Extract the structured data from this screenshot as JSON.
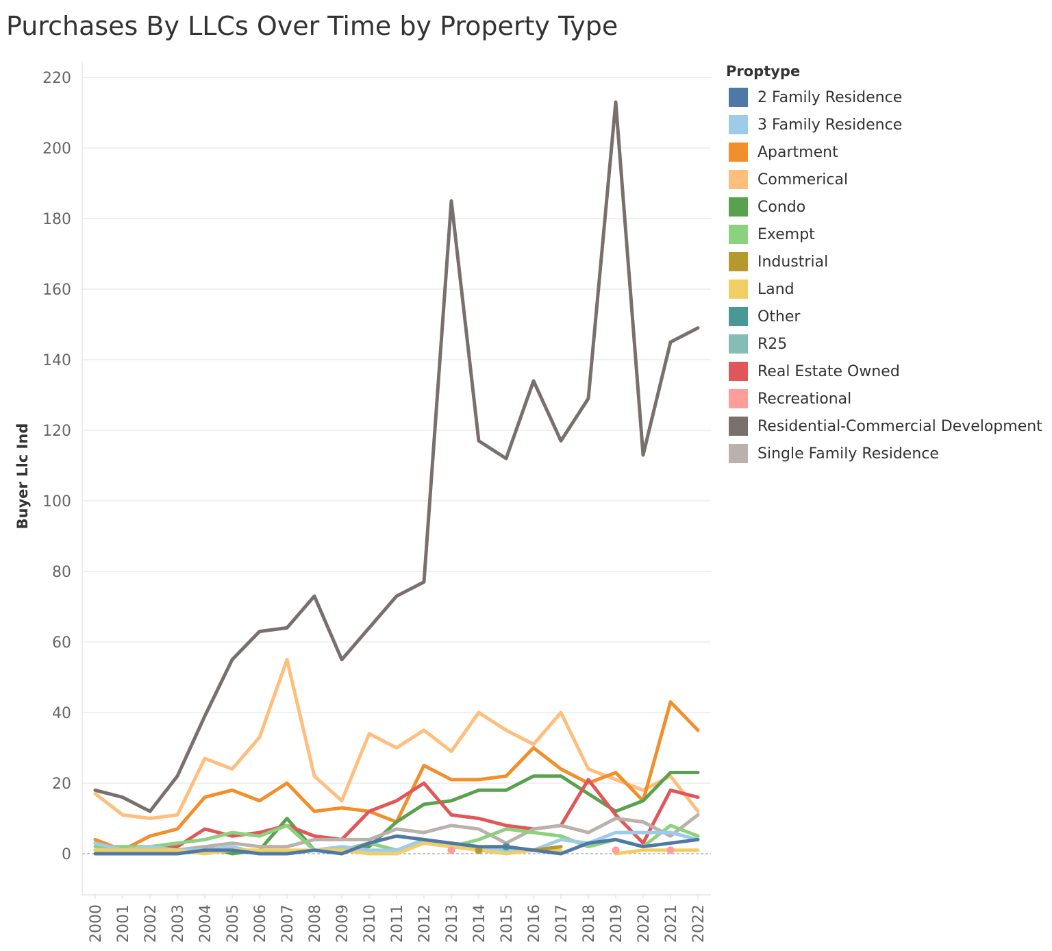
{
  "title": "Purchases By LLCs Over Time by Property Type",
  "chart_data": {
    "type": "line",
    "title": "Purchases By LLCs Over Time by Property Type",
    "xlabel": "",
    "ylabel": "Buyer Llc Ind",
    "ylim": [
      -12,
      224
    ],
    "yticks": [
      0,
      20,
      40,
      60,
      80,
      100,
      120,
      140,
      160,
      180,
      200,
      220
    ],
    "grid": true,
    "legend_title": "Proptype",
    "legend_position": "right",
    "categories": [
      "2000",
      "2001",
      "2002",
      "2003",
      "2004",
      "2005",
      "2006",
      "2007",
      "2008",
      "2009",
      "2010",
      "2011",
      "2012",
      "2013",
      "2014",
      "2015",
      "2016",
      "2017",
      "2018",
      "2019",
      "2020",
      "2021",
      "2022"
    ],
    "series": [
      {
        "name": "Residential-Commercial Development",
        "color": "#79706e",
        "values": [
          18,
          16,
          12,
          22,
          39,
          55,
          63,
          64,
          73,
          55,
          64,
          73,
          77,
          185,
          117,
          112,
          134,
          117,
          129,
          213,
          113,
          145,
          149
        ]
      },
      {
        "name": "Commerical",
        "color": "#ffbe7d",
        "values": [
          17,
          11,
          10,
          11,
          27,
          24,
          33,
          55,
          22,
          15,
          34,
          30,
          35,
          29,
          40,
          35,
          31,
          40,
          24,
          21,
          18,
          22,
          12
        ]
      },
      {
        "name": "Apartment",
        "color": "#f28e2b",
        "values": [
          4,
          1,
          5,
          7,
          16,
          18,
          15,
          20,
          12,
          13,
          12,
          9,
          25,
          21,
          21,
          22,
          30,
          24,
          20,
          23,
          15,
          43,
          35
        ]
      },
      {
        "name": "Condo",
        "color": "#59a14f",
        "values": [
          1,
          1,
          1,
          1,
          2,
          0,
          1,
          10,
          1,
          1,
          2,
          9,
          14,
          15,
          18,
          18,
          22,
          22,
          17,
          12,
          15,
          23,
          23
        ]
      },
      {
        "name": "Real Estate Owned",
        "color": "#e15759",
        "values": [
          3,
          1,
          1,
          2,
          7,
          5,
          6,
          8,
          5,
          4,
          12,
          15,
          20,
          11,
          10,
          8,
          7,
          8,
          21,
          11,
          3,
          18,
          16
        ]
      },
      {
        "name": "Single Family Residence",
        "color": "#bab0ac",
        "values": [
          3,
          1,
          1,
          1,
          2,
          3,
          2,
          2,
          4,
          4,
          4,
          7,
          6,
          8,
          7,
          3,
          7,
          8,
          6,
          10,
          9,
          5,
          11
        ]
      },
      {
        "name": "Exempt",
        "color": "#8cd17d",
        "values": [
          2,
          2,
          2,
          3,
          4,
          6,
          5,
          8,
          1,
          1,
          3,
          1,
          3,
          2,
          4,
          7,
          6,
          5,
          2,
          4,
          2,
          8,
          5
        ]
      },
      {
        "name": "3 Family Residence",
        "color": "#a0cbe8",
        "values": [
          3,
          1,
          2,
          1,
          1,
          2,
          0,
          0,
          1,
          2,
          1,
          1,
          4,
          2,
          2,
          1,
          1,
          4,
          3,
          6,
          6,
          6,
          4
        ]
      },
      {
        "name": "Land",
        "color": "#f1ce63",
        "values": [
          1,
          1,
          1,
          1,
          0,
          1,
          1,
          1,
          1,
          1,
          0,
          0,
          3,
          2,
          1,
          0,
          1,
          1,
          null,
          0,
          1,
          1,
          1
        ]
      },
      {
        "name": "Industrial",
        "color": "#b6992d",
        "values": [
          null,
          null,
          null,
          null,
          null,
          null,
          null,
          null,
          null,
          null,
          null,
          null,
          null,
          null,
          1,
          null,
          1,
          2,
          null,
          null,
          null,
          null,
          null
        ]
      },
      {
        "name": "Other",
        "color": "#499894",
        "values": [
          null,
          null,
          null,
          null,
          null,
          null,
          null,
          null,
          null,
          null,
          null,
          null,
          null,
          null,
          null,
          2,
          null,
          null,
          null,
          null,
          null,
          null,
          null
        ]
      },
      {
        "name": "R25",
        "color": "#86bcb6",
        "values": [
          null,
          null,
          null,
          null,
          null,
          null,
          null,
          null,
          null,
          null,
          null,
          null,
          null,
          null,
          null,
          null,
          null,
          null,
          null,
          null,
          null,
          null,
          null
        ]
      },
      {
        "name": "Recreational",
        "color": "#ff9d9a",
        "values": [
          null,
          null,
          null,
          null,
          null,
          null,
          null,
          null,
          null,
          null,
          null,
          null,
          null,
          1,
          null,
          null,
          null,
          null,
          null,
          1,
          null,
          1,
          null
        ]
      },
      {
        "name": "2 Family Residence",
        "color": "#4e79a7",
        "values": [
          0,
          0,
          0,
          0,
          1,
          1,
          0,
          0,
          1,
          0,
          3,
          5,
          4,
          3,
          2,
          2,
          1,
          0,
          3,
          4,
          2,
          3,
          4
        ]
      }
    ],
    "legend_order": [
      "2 Family Residence",
      "3 Family Residence",
      "Apartment",
      "Commerical",
      "Condo",
      "Exempt",
      "Industrial",
      "Land",
      "Other",
      "R25",
      "Real Estate Owned",
      "Recreational",
      "Residential-Commercial Development",
      "Single Family Residence"
    ]
  }
}
